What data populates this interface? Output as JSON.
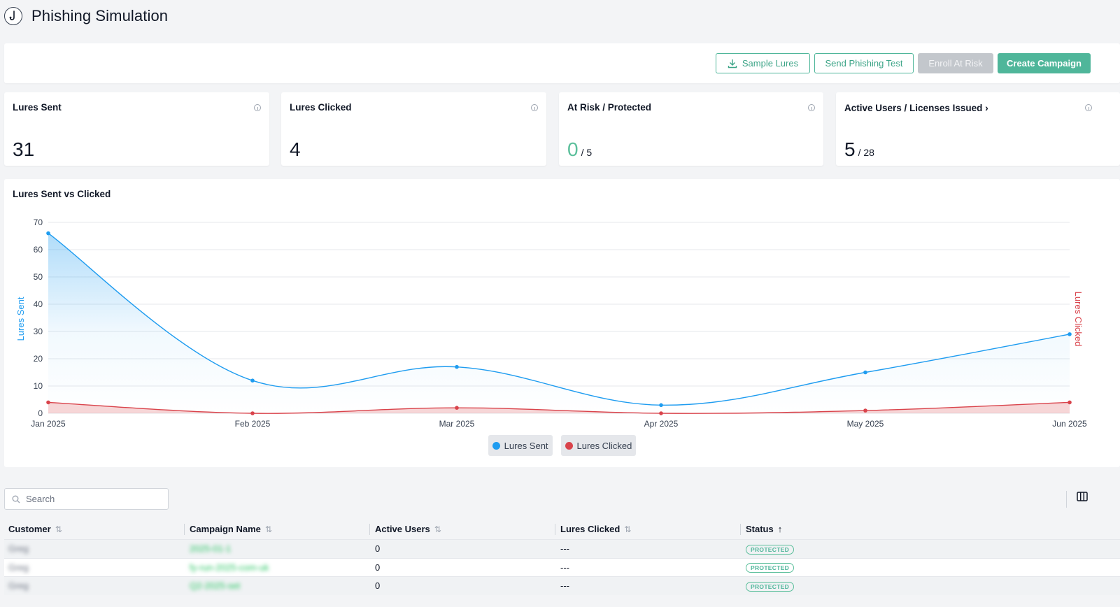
{
  "page": {
    "title": "Phishing Simulation",
    "logo_icon": "hook-icon"
  },
  "toolbar": {
    "sample_lures": "Sample Lures",
    "send_test": "Send Phishing Test",
    "enroll_at_risk": "Enroll At Risk",
    "create_campaign": "Create Campaign"
  },
  "cards": {
    "lures_sent": {
      "label": "Lures Sent",
      "value": "31"
    },
    "lures_clicked": {
      "label": "Lures Clicked",
      "value": "4"
    },
    "at_risk": {
      "label": "At Risk / Protected",
      "value": "0",
      "sub": "/ 5"
    },
    "active_users": {
      "label": "Active Users / Licenses Issued",
      "value": "5",
      "sub": "/ 28"
    }
  },
  "chart": {
    "title": "Lures Sent vs Clicked"
  },
  "chart_data": {
    "type": "line",
    "title": "Lures Sent vs Clicked",
    "x": [
      "Jan 2025",
      "Feb 2025",
      "Mar 2025",
      "Apr 2025",
      "May 2025",
      "Jun 2025"
    ],
    "ylabel": "Lures Sent",
    "y2label": "Lures Clicked",
    "ylim": [
      0,
      70
    ],
    "yticks": [
      0,
      10,
      20,
      30,
      40,
      50,
      60,
      70
    ],
    "grid": true,
    "legend": "bottom-center",
    "series": [
      {
        "name": "Lures Sent",
        "axis": "left",
        "values": [
          66,
          12,
          17,
          3,
          15,
          29
        ],
        "color": "#1e9cf0"
      },
      {
        "name": "Lures Clicked",
        "axis": "right",
        "values": [
          4,
          0,
          2,
          0,
          1,
          4
        ],
        "color": "#d9434b"
      }
    ]
  },
  "table": {
    "search_placeholder": "Search",
    "columns_icon": "columns-icon",
    "headers": [
      "Customer",
      "Campaign Name",
      "Active Users",
      "Lures Clicked",
      "Status"
    ],
    "rows": [
      {
        "customer": "Greg",
        "campaign": "2025-01-1",
        "active_users": "0",
        "lures_clicked": "---",
        "status": "PROTECTED"
      },
      {
        "customer": "Greg",
        "campaign": "fy-run-2025-com-uk",
        "active_users": "0",
        "lures_clicked": "---",
        "status": "PROTECTED"
      },
      {
        "customer": "Greg",
        "campaign": "Q2-2025-set",
        "active_users": "0",
        "lures_clicked": "---",
        "status": "PROTECTED"
      }
    ]
  }
}
